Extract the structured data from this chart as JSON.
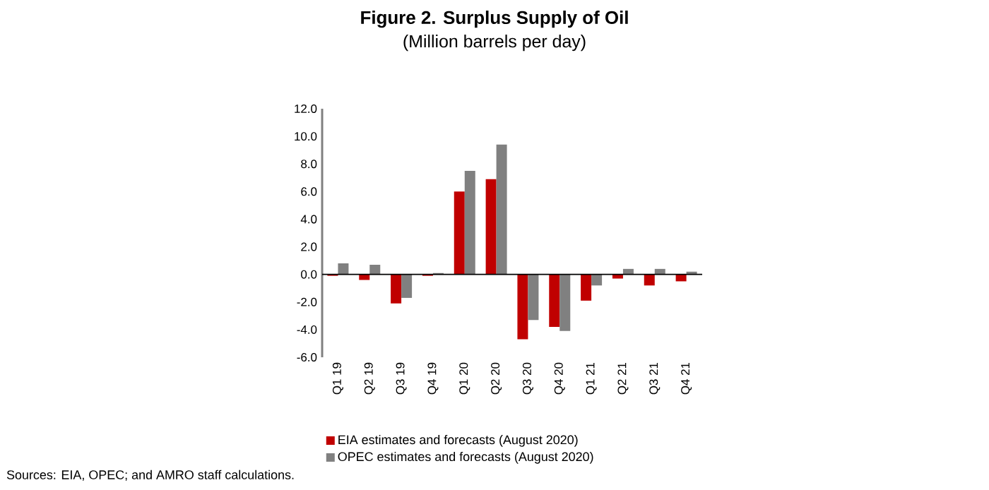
{
  "chart_data": {
    "type": "bar",
    "title": "Figure 2. Surplus Supply of Oil",
    "subtitle": "(Million barrels per day)",
    "categories": [
      "Q1 19",
      "Q2 19",
      "Q3 19",
      "Q4 19",
      "Q1 20",
      "Q2 20",
      "Q3 20",
      "Q4 20",
      "Q1 21",
      "Q2 21",
      "Q3 21",
      "Q4 21"
    ],
    "series": [
      {
        "name": "EIA estimates and forecasts (August 2020)",
        "color": "#c00000",
        "values": [
          -0.1,
          -0.4,
          -2.1,
          -0.1,
          6.0,
          6.9,
          -4.7,
          -3.8,
          -1.9,
          -0.3,
          -0.8,
          -0.5
        ]
      },
      {
        "name": "OPEC estimates and forecasts (August 2020)",
        "color": "#808080",
        "values": [
          0.8,
          0.7,
          -1.7,
          0.1,
          7.5,
          9.4,
          -3.3,
          -4.1,
          -0.8,
          0.4,
          0.4,
          0.2
        ]
      }
    ],
    "ylim": [
      -6,
      12
    ],
    "yticks": [
      {
        "value": -6,
        "label": "-6.0"
      },
      {
        "value": -4,
        "label": "-4.0"
      },
      {
        "value": -2,
        "label": "-2.0"
      },
      {
        "value": 0,
        "label": "0.0"
      },
      {
        "value": 2,
        "label": "2.0"
      },
      {
        "value": 4,
        "label": "4.0"
      },
      {
        "value": 6,
        "label": "6.0"
      },
      {
        "value": 8,
        "label": "8.0"
      },
      {
        "value": 10,
        "label": "10.0"
      },
      {
        "value": 12,
        "label": "12.0"
      }
    ],
    "legend": "bottom",
    "annotations": [
      "Sources: EIA, OPEC; and AMRO staff calculations."
    ]
  }
}
